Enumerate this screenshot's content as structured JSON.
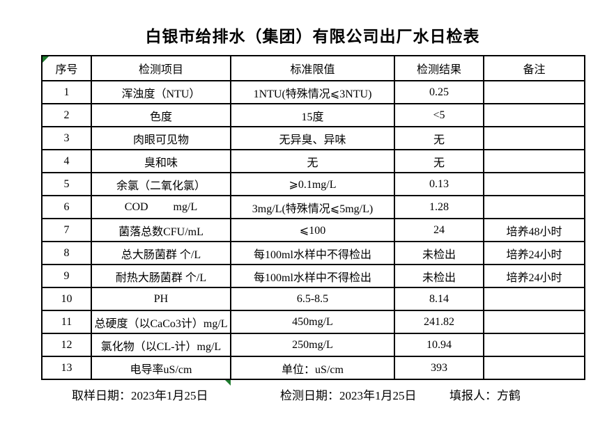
{
  "title": "白银市给排水（集团）有限公司出厂水日检表",
  "table": {
    "headers": {
      "no": "序号",
      "item": "检测项目",
      "standard": "标准限值",
      "result": "检测结果",
      "remark": "备注"
    },
    "rows": [
      {
        "no": "1",
        "item": "浑浊度（NTU）",
        "standard": "1NTU(特殊情况⩽3NTU)",
        "result": "0.25",
        "remark": ""
      },
      {
        "no": "2",
        "item": "色度",
        "standard": "15度",
        "result": "<5",
        "remark": ""
      },
      {
        "no": "3",
        "item": "肉眼可见物",
        "standard": "无异臭、异味",
        "result": "无",
        "remark": ""
      },
      {
        "no": "4",
        "item": "臭和味",
        "standard": "无",
        "result": "无",
        "remark": ""
      },
      {
        "no": "5",
        "item": "余氯（二氧化氯）",
        "standard": "⩾0.1mg/L",
        "result": "0.13",
        "remark": ""
      },
      {
        "no": "6",
        "item": "COD         mg/L",
        "standard": "3mg/L(特殊情况⩽5mg/L)",
        "result": "1.28",
        "remark": ""
      },
      {
        "no": "7",
        "item": "菌落总数CFU/mL",
        "standard": "⩽100",
        "result": "24",
        "remark": "培养48小时"
      },
      {
        "no": "8",
        "item": "总大肠菌群 个/L",
        "standard": "每100ml水样中不得检出",
        "result": "未检出",
        "remark": "培养24小时"
      },
      {
        "no": "9",
        "item": "耐热大肠菌群 个/L",
        "standard": "每100ml水样中不得检出",
        "result": "未检出",
        "remark": "培养24小时"
      },
      {
        "no": "10",
        "item": "PH",
        "standard": "6.5-8.5",
        "result": "8.14",
        "remark": ""
      },
      {
        "no": "11",
        "item": "总硬度（以CaCo3计）mg/L",
        "standard": "450mg/L",
        "result": "241.82",
        "remark": ""
      },
      {
        "no": "12",
        "item": "氯化物（以CL-计）mg/L",
        "standard": "250mg/L",
        "result": "10.94",
        "remark": ""
      },
      {
        "no": "13",
        "item": "电导率uS/cm",
        "standard": "单位：uS/cm",
        "result": "393",
        "remark": ""
      }
    ]
  },
  "footer": {
    "sampling_date": "取样日期：2023年1月25日",
    "test_date": "检测日期：2023年1月25日",
    "reporter": "填报人：方鹤"
  },
  "colors": {
    "marker_green": "#1e7b2e",
    "grid_black": "#000000"
  }
}
